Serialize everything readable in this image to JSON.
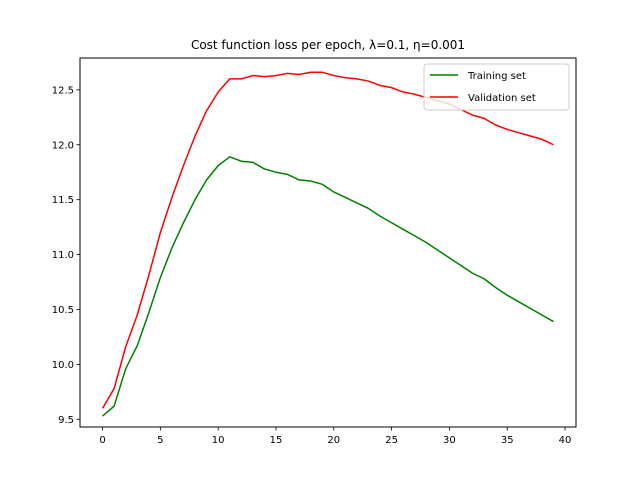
{
  "chart_data": {
    "type": "line",
    "title": "Cost function loss per epoch, λ=0.1, η=0.001",
    "xlabel": "",
    "ylabel": "",
    "xlim": [
      -1.95,
      40.95
    ],
    "ylim": [
      9.43,
      12.79
    ],
    "xticks": [
      0,
      5,
      10,
      15,
      20,
      25,
      30,
      35,
      40
    ],
    "yticks": [
      9.5,
      10.0,
      10.5,
      11.0,
      11.5,
      12.0,
      12.5
    ],
    "grid": false,
    "legend_position": "top-right",
    "x": [
      0,
      1,
      2,
      3,
      4,
      5,
      6,
      7,
      8,
      9,
      10,
      11,
      12,
      13,
      14,
      15,
      16,
      17,
      18,
      19,
      20,
      21,
      22,
      23,
      24,
      25,
      26,
      27,
      28,
      29,
      30,
      31,
      32,
      33,
      34,
      35,
      36,
      37,
      38,
      39
    ],
    "series": [
      {
        "name": "Training set",
        "color": "#008000",
        "values": [
          9.53,
          9.62,
          9.96,
          10.17,
          10.47,
          10.79,
          11.06,
          11.29,
          11.5,
          11.68,
          11.81,
          11.89,
          11.85,
          11.84,
          11.78,
          11.75,
          11.73,
          11.68,
          11.67,
          11.64,
          11.57,
          11.52,
          11.47,
          11.42,
          11.35,
          11.29,
          11.23,
          11.17,
          11.11,
          11.04,
          10.97,
          10.9,
          10.83,
          10.78,
          10.7,
          10.63,
          10.57,
          10.51,
          10.45,
          10.39
        ]
      },
      {
        "name": "Validation set",
        "color": "#ff0000",
        "values": [
          9.6,
          9.78,
          10.16,
          10.45,
          10.81,
          11.2,
          11.52,
          11.81,
          12.08,
          12.31,
          12.48,
          12.6,
          12.6,
          12.63,
          12.62,
          12.63,
          12.65,
          12.64,
          12.66,
          12.66,
          12.63,
          12.61,
          12.6,
          12.58,
          12.54,
          12.52,
          12.48,
          12.46,
          12.43,
          12.4,
          12.37,
          12.32,
          12.27,
          12.24,
          12.18,
          12.14,
          12.11,
          12.08,
          12.05,
          12.0
        ]
      }
    ]
  }
}
